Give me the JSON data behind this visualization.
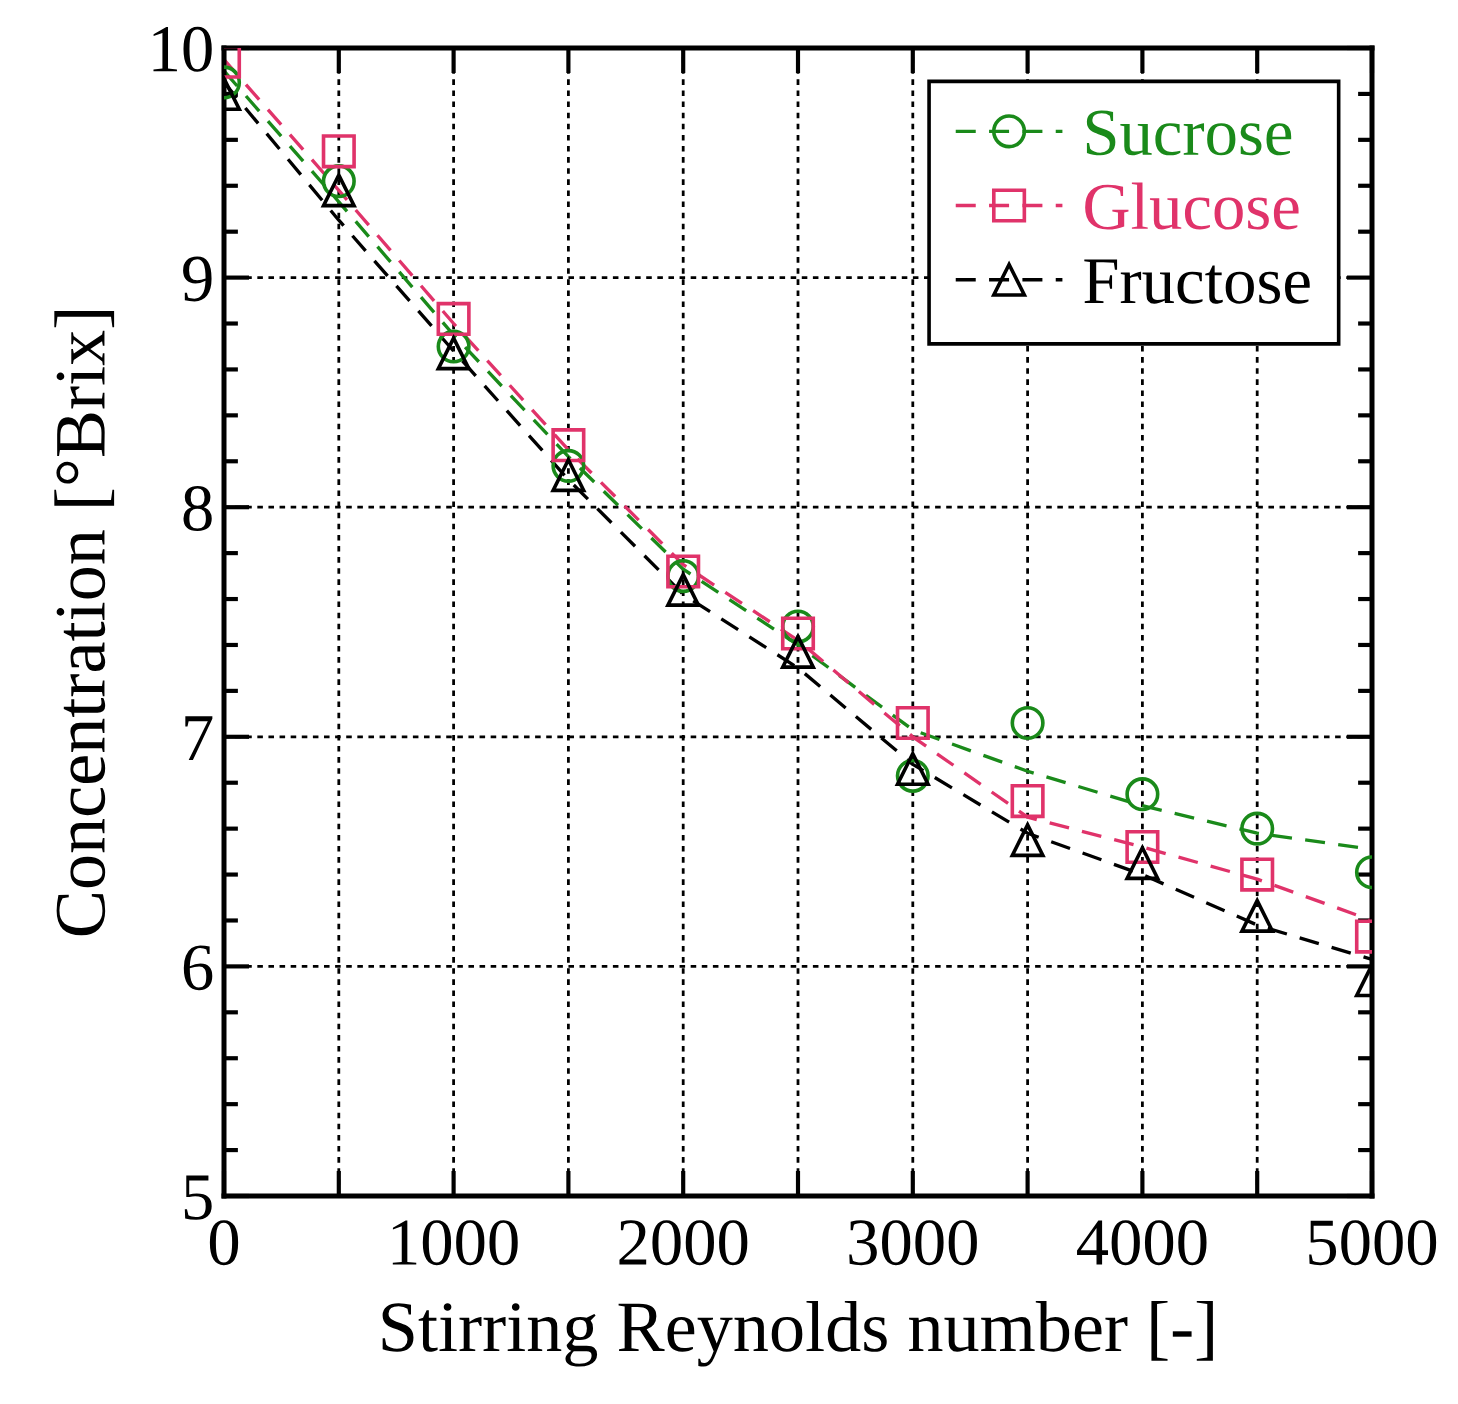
{
  "chart_data": {
    "type": "scatter",
    "xlabel": "Stirring Reynolds number [-]",
    "ylabel": "Concentration [°Brix]",
    "xlim": [
      0,
      5000
    ],
    "ylim": [
      5,
      10
    ],
    "xticks": [
      0,
      {
        "value": 500,
        "label": null
      },
      1000,
      {
        "value": 1500,
        "label": null
      },
      2000,
      {
        "value": 2500,
        "label": null
      },
      3000,
      {
        "value": 3500,
        "label": null
      },
      4000,
      {
        "value": 4500,
        "label": null
      },
      5000
    ],
    "yticks": [
      5,
      6,
      7,
      8,
      9,
      10
    ],
    "grid": true,
    "legend": "top right",
    "x": [
      0,
      500,
      1000,
      1500,
      2000,
      2500,
      3000,
      3500,
      4000,
      4500,
      5000
    ],
    "series": [
      {
        "name": "Sucrose",
        "color": "#1a8a1a",
        "marker": "circle",
        "values": [
          9.85,
          9.42,
          8.7,
          8.18,
          7.7,
          7.48,
          6.83,
          7.06,
          6.75,
          6.6,
          6.41
        ]
      },
      {
        "name": "Glucose",
        "color": "#e0336a",
        "marker": "square",
        "values": [
          9.94,
          9.55,
          8.82,
          8.27,
          7.72,
          7.45,
          7.06,
          6.72,
          6.52,
          6.4,
          6.13
        ]
      },
      {
        "name": "Fructose",
        "color": "#000000",
        "marker": "triangle",
        "values": [
          9.8,
          9.38,
          8.67,
          8.14,
          7.64,
          7.37,
          6.86,
          6.55,
          6.45,
          6.22,
          5.94
        ]
      },
      {
        "type": "line",
        "line_style": "dashed",
        "color": "#1a8a1a",
        "values": [
          9.9,
          9.33,
          8.75,
          8.22,
          7.73,
          7.4,
          7.03,
          6.85,
          6.7,
          6.58,
          6.51
        ]
      },
      {
        "type": "line",
        "line_style": "dashed",
        "color": "#e0336a",
        "values": [
          9.95,
          9.38,
          8.8,
          8.25,
          7.75,
          7.42,
          7.0,
          6.65,
          6.52,
          6.38,
          6.2
        ]
      },
      {
        "type": "line",
        "line_style": "dashed",
        "color": "#000000",
        "values": [
          9.85,
          9.25,
          8.68,
          8.12,
          7.62,
          7.3,
          6.88,
          6.58,
          6.4,
          6.18,
          6.03
        ]
      }
    ]
  }
}
